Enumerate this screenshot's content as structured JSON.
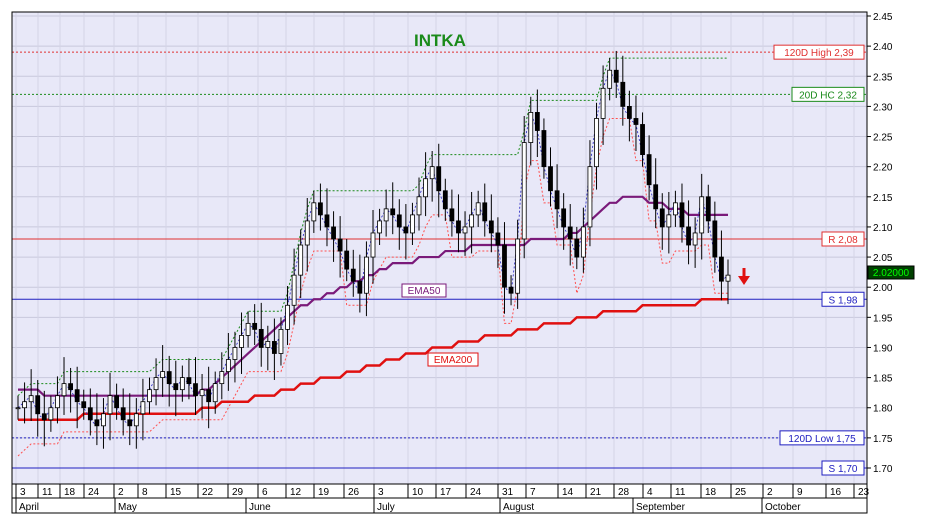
{
  "chart_data": {
    "type": "candlestick",
    "title": "INTKA",
    "title_color": "#1a8a1a",
    "ylim": [
      1.68,
      2.45
    ],
    "y_ticks": [
      "2.45",
      "2.40",
      "2.35",
      "2.30",
      "2.25",
      "2.20",
      "2.15",
      "2.10",
      "2.05",
      "2.00",
      "1.95",
      "1.90",
      "1.85",
      "1.80",
      "1.75",
      "1.70"
    ],
    "x_day_ticks": [
      "3",
      "11",
      "18",
      "24",
      "2",
      "8",
      "15",
      "22",
      "29",
      "6",
      "12",
      "19",
      "26",
      "3",
      "10",
      "17",
      "24",
      "31",
      "7",
      "14",
      "21",
      "28",
      "4",
      "11",
      "18",
      "25",
      "2",
      "9",
      "16",
      "23"
    ],
    "x_month_ticks": [
      "April",
      "May",
      "June",
      "July",
      "August",
      "September",
      "October"
    ],
    "last_price": "2.02000",
    "grid": true,
    "colors": {
      "background": "#e8e8f8",
      "ema50": "#7a1a7a",
      "ema200": "#e01010",
      "resistance": "#e03030",
      "support": "#2020c0",
      "high20": "#1a8a1a",
      "trail": "#ff5050",
      "candle": "#000000"
    },
    "levels": [
      {
        "label": "120D High 2,39",
        "value": 2.39,
        "style": "dotted",
        "color": "#e03030"
      },
      {
        "label": "20D HC 2,32",
        "value": 2.32,
        "style": "dotted",
        "color": "#1a8a1a"
      },
      {
        "label": "R 2,08",
        "value": 2.08,
        "style": "solid",
        "color": "#e03030"
      },
      {
        "label": "S 1,98",
        "value": 1.98,
        "style": "solid",
        "color": "#2020c0"
      },
      {
        "label": "120D Low 1,75",
        "value": 1.75,
        "style": "dotted",
        "color": "#2020c0"
      },
      {
        "label": "S 1,70",
        "value": 1.7,
        "style": "solid",
        "color": "#2020c0"
      }
    ],
    "series_labels": {
      "ema50": "EMA50",
      "ema200": "EMA200"
    },
    "close": [
      1.8,
      1.81,
      1.82,
      1.79,
      1.78,
      1.8,
      1.82,
      1.84,
      1.83,
      1.81,
      1.8,
      1.78,
      1.77,
      1.79,
      1.82,
      1.8,
      1.78,
      1.77,
      1.79,
      1.81,
      1.83,
      1.85,
      1.86,
      1.84,
      1.83,
      1.85,
      1.84,
      1.82,
      1.83,
      1.81,
      1.84,
      1.86,
      1.88,
      1.9,
      1.92,
      1.94,
      1.93,
      1.9,
      1.91,
      1.89,
      1.93,
      1.97,
      2.02,
      2.07,
      2.11,
      2.14,
      2.12,
      2.1,
      2.08,
      2.06,
      2.03,
      2.01,
      1.99,
      2.05,
      2.09,
      2.11,
      2.13,
      2.12,
      2.1,
      2.09,
      2.12,
      2.15,
      2.18,
      2.2,
      2.16,
      2.13,
      2.11,
      2.09,
      2.1,
      2.12,
      2.14,
      2.11,
      2.09,
      2.07,
      2.0,
      1.99,
      2.08,
      2.24,
      2.29,
      2.26,
      2.2,
      2.16,
      2.13,
      2.1,
      2.08,
      2.05,
      2.1,
      2.2,
      2.28,
      2.33,
      2.36,
      2.34,
      2.3,
      2.28,
      2.27,
      2.22,
      2.17,
      2.13,
      2.1,
      2.12,
      2.14,
      2.1,
      2.07,
      2.09,
      2.15,
      2.11,
      2.05,
      2.01,
      2.02
    ],
    "ema50": [
      1.83,
      1.83,
      1.83,
      1.83,
      1.82,
      1.82,
      1.82,
      1.82,
      1.82,
      1.82,
      1.82,
      1.82,
      1.82,
      1.82,
      1.82,
      1.82,
      1.82,
      1.82,
      1.82,
      1.82,
      1.82,
      1.82,
      1.82,
      1.82,
      1.82,
      1.82,
      1.82,
      1.82,
      1.83,
      1.83,
      1.84,
      1.85,
      1.86,
      1.87,
      1.88,
      1.89,
      1.9,
      1.91,
      1.92,
      1.93,
      1.94,
      1.95,
      1.96,
      1.97,
      1.97,
      1.98,
      1.98,
      1.99,
      1.99,
      2.0,
      2.0,
      2.01,
      2.01,
      2.02,
      2.02,
      2.03,
      2.03,
      2.04,
      2.04,
      2.04,
      2.04,
      2.05,
      2.05,
      2.05,
      2.05,
      2.06,
      2.06,
      2.06,
      2.06,
      2.07,
      2.07,
      2.07,
      2.07,
      2.07,
      2.07,
      2.07,
      2.07,
      2.07,
      2.08,
      2.08,
      2.08,
      2.08,
      2.08,
      2.08,
      2.09,
      2.09,
      2.1,
      2.11,
      2.12,
      2.13,
      2.14,
      2.14,
      2.15,
      2.15,
      2.15,
      2.15,
      2.14,
      2.14,
      2.14,
      2.13,
      2.13,
      2.13,
      2.12,
      2.12,
      2.12,
      2.12,
      2.12,
      2.12,
      2.12
    ],
    "ema200": [
      1.78,
      1.78,
      1.78,
      1.78,
      1.78,
      1.78,
      1.78,
      1.78,
      1.78,
      1.78,
      1.79,
      1.79,
      1.79,
      1.79,
      1.79,
      1.79,
      1.79,
      1.79,
      1.79,
      1.79,
      1.79,
      1.79,
      1.79,
      1.79,
      1.79,
      1.79,
      1.79,
      1.79,
      1.8,
      1.8,
      1.8,
      1.81,
      1.81,
      1.81,
      1.81,
      1.81,
      1.82,
      1.82,
      1.82,
      1.82,
      1.83,
      1.83,
      1.83,
      1.84,
      1.84,
      1.84,
      1.85,
      1.85,
      1.85,
      1.85,
      1.86,
      1.86,
      1.86,
      1.87,
      1.87,
      1.87,
      1.88,
      1.88,
      1.88,
      1.89,
      1.89,
      1.89,
      1.89,
      1.9,
      1.9,
      1.9,
      1.9,
      1.91,
      1.91,
      1.91,
      1.91,
      1.92,
      1.92,
      1.92,
      1.92,
      1.92,
      1.93,
      1.93,
      1.93,
      1.93,
      1.94,
      1.94,
      1.94,
      1.94,
      1.94,
      1.95,
      1.95,
      1.95,
      1.95,
      1.96,
      1.96,
      1.96,
      1.96,
      1.96,
      1.96,
      1.97,
      1.97,
      1.97,
      1.97,
      1.97,
      1.97,
      1.97,
      1.97,
      1.97,
      1.98,
      1.98,
      1.98,
      1.98,
      1.98
    ]
  }
}
